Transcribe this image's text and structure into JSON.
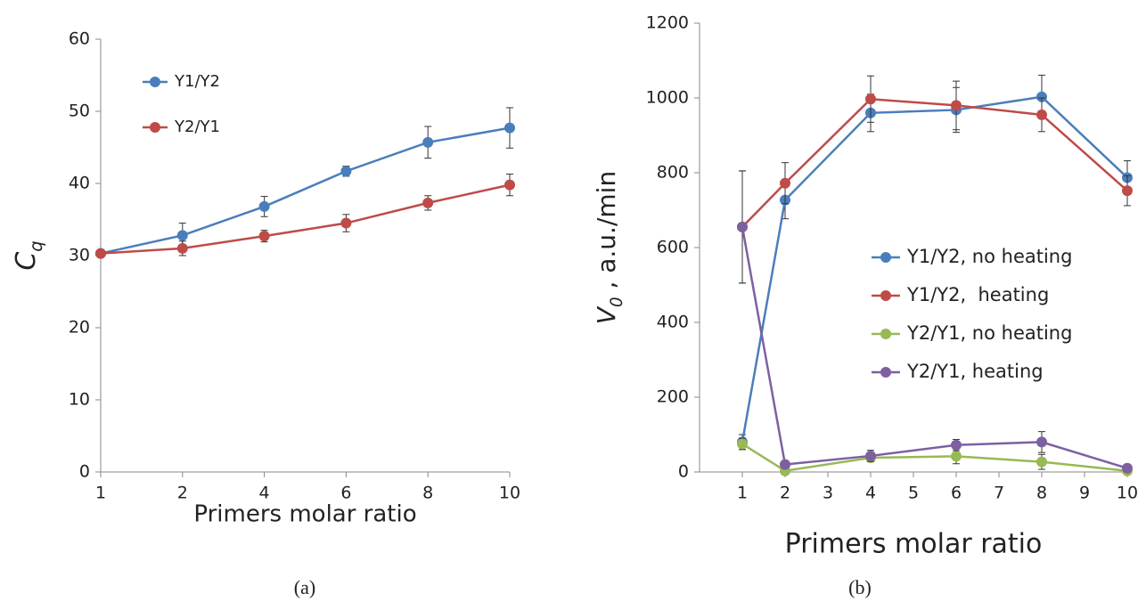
{
  "chart_data": [
    {
      "type": "line",
      "caption": "(a)",
      "xlabel": "Primers molar ratio",
      "ylabel": {
        "text": "C",
        "sub": "q"
      },
      "categories": [
        "1",
        "2",
        "4",
        "6",
        "8",
        "10"
      ],
      "ylim": [
        0,
        60
      ],
      "yticks": [
        0,
        10,
        20,
        30,
        40,
        50,
        60
      ],
      "grid": false,
      "legend": "upper left",
      "series": [
        {
          "name": "Y1/Y2",
          "color": "#4a7ebb",
          "values": [
            30.3,
            32.8,
            36.8,
            41.7,
            45.7,
            47.7
          ],
          "errors": [
            0.3,
            1.7,
            1.4,
            0.7,
            2.2,
            2.8
          ]
        },
        {
          "name": "Y2/Y1",
          "color": "#be4b48",
          "values": [
            30.3,
            31.0,
            32.7,
            34.5,
            37.3,
            39.8
          ],
          "errors": [
            0.3,
            1.0,
            0.8,
            1.2,
            1.0,
            1.5
          ]
        }
      ]
    },
    {
      "type": "line",
      "caption": "(b)",
      "xlabel": "Primers molar ratio",
      "ylabel": {
        "text": "V",
        "sub": "0",
        "rest": " , a.u./min"
      },
      "x": [
        1,
        2,
        4,
        6,
        8,
        10
      ],
      "xlim": [
        0,
        10
      ],
      "xticks": [
        1,
        2,
        3,
        4,
        5,
        6,
        7,
        8,
        9,
        10
      ],
      "ylim": [
        0,
        1200
      ],
      "yticks": [
        0,
        200,
        400,
        600,
        800,
        1000,
        1200
      ],
      "grid": false,
      "legend": "center right",
      "series": [
        {
          "name": "Y1/Y2, no heating",
          "color": "#4a7ebb",
          "values": [
            80,
            727,
            960,
            968,
            1003,
            787
          ],
          "errors": [
            20,
            50,
            50,
            60,
            58,
            45
          ]
        },
        {
          "name": "Y1/Y2,  heating",
          "color": "#be4b48",
          "values": [
            655,
            772,
            997,
            980,
            955,
            752
          ],
          "errors": [
            150,
            55,
            62,
            65,
            45,
            40
          ]
        },
        {
          "name": "Y2/Y1, no heating",
          "color": "#98b954",
          "values": [
            75,
            3,
            38,
            42,
            27,
            3
          ],
          "errors": [
            15,
            5,
            10,
            20,
            20,
            3
          ]
        },
        {
          "name": "Y2/Y1, heating",
          "color": "#7d60a0",
          "values": [
            655,
            20,
            43,
            72,
            80,
            10
          ],
          "errors": [
            150,
            5,
            15,
            15,
            28,
            5
          ]
        }
      ]
    }
  ]
}
